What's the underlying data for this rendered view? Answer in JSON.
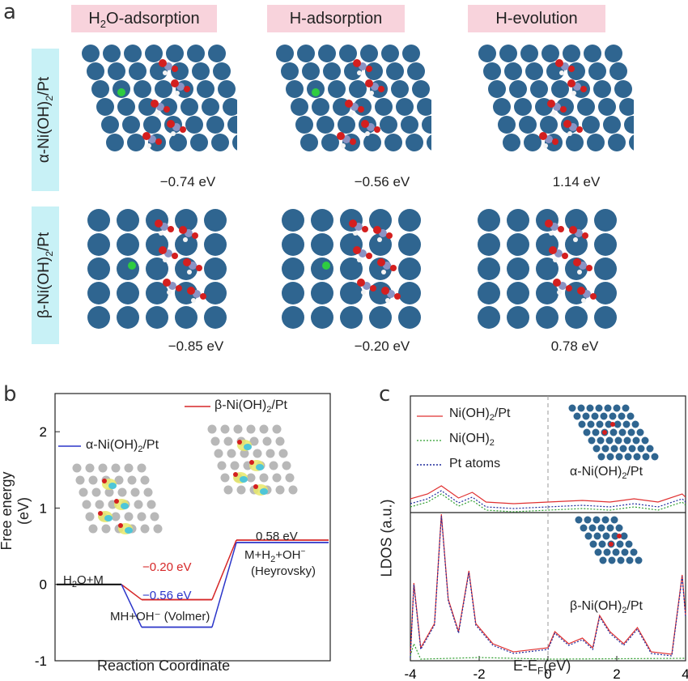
{
  "panel_a": {
    "letter": "a",
    "column_titles": [
      "H2O-adsorption",
      "H-adsorption",
      "H-evolution"
    ],
    "row_labels": [
      "α-Ni(OH)2/Pt",
      "β-Ni(OH)2/Pt"
    ],
    "energies": [
      [
        "−0.74 eV",
        "−0.56 eV",
        "1.14 eV"
      ],
      [
        "−0.85 eV",
        "−0.20 eV",
        "0.78 eV"
      ]
    ]
  },
  "panel_b": {
    "letter": "b",
    "legend_beta": "β-Ni(OH)2/Pt",
    "legend_alpha": "α-Ni(OH)2/Pt",
    "label_h2o_m": "H2O+M",
    "label_mh": "MH+OH⁻  (Volmer)",
    "label_m_h2": "M+H2+OH⁻",
    "label_heyrovsky": "(Heyrovsky)",
    "val_beta": "−0.20 eV",
    "val_alpha": "−0.56 eV",
    "val_final": "0.58 eV",
    "colors": {
      "beta": "#d62728",
      "alpha": "#2b35c9",
      "base": "#000000"
    }
  },
  "panel_c": {
    "letter": "c",
    "legend": [
      "Ni(OH)2/Pt",
      "Ni(OH)2",
      "Pt atoms"
    ],
    "label_alpha": "α-Ni(OH)2/Pt",
    "label_beta": "β-Ni(OH)2/Pt",
    "colors": {
      "ni_pt": "#e03030",
      "ni": "#2e9e2e",
      "pt": "#1f2a9c"
    }
  },
  "chart_data": [
    {
      "type": "line",
      "title": "",
      "xlabel": "Reaction Coordinate",
      "ylabel": "Free energy (eV)",
      "ylim": [
        -1,
        2.5
      ],
      "yticks": [
        "-1",
        "0",
        "1",
        "2"
      ],
      "series": [
        {
          "name": "β-Ni(OH)2/Pt",
          "values": [
            0,
            -0.2,
            0.58
          ]
        },
        {
          "name": "α-Ni(OH)2/Pt",
          "values": [
            0,
            -0.56,
            0.58
          ]
        }
      ],
      "categories": [
        "H2O+M",
        "MH+OH⁻ (Volmer)",
        "M+H2+OH⁻ (Heyrovsky)"
      ]
    },
    {
      "type": "line",
      "title": "",
      "xlabel": "E-EF(eV)",
      "ylabel": "LDOS (a.u.)",
      "xlim": [
        -4,
        4
      ],
      "xticks": [
        "-4",
        "-2",
        "0",
        "2",
        "4"
      ],
      "series": [
        {
          "name": "Ni(OH)2/Pt"
        },
        {
          "name": "Ni(OH)2"
        },
        {
          "name": "Pt atoms"
        }
      ]
    }
  ]
}
